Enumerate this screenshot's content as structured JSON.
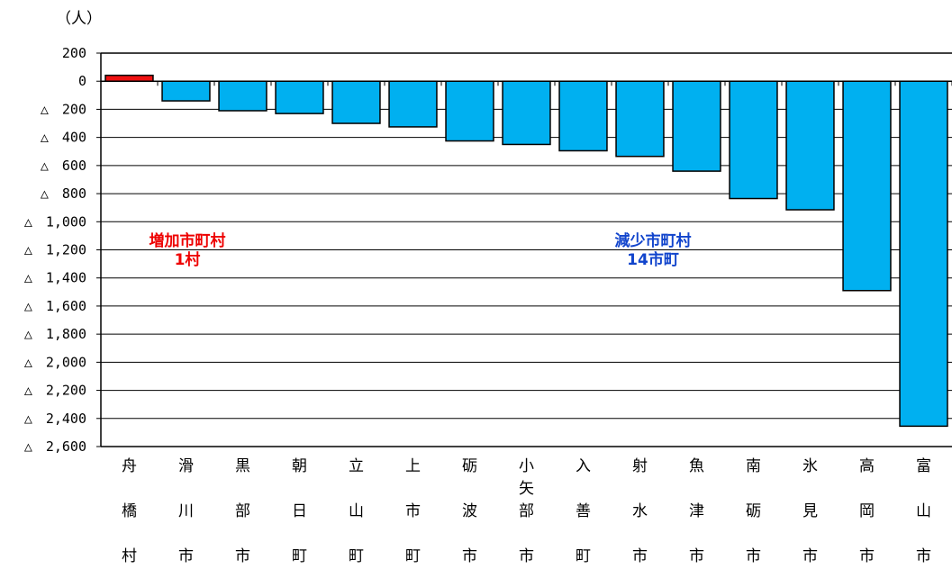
{
  "chart_data": {
    "type": "bar",
    "unit_label": "（人）",
    "categories": [
      "舟橋村",
      "滑川市",
      "黒部市",
      "朝日町",
      "立山町",
      "上市町",
      "砺波市",
      "小矢部市",
      "入善町",
      "射水市",
      "魚津市",
      "南砺市",
      "氷見市",
      "高岡市",
      "富山市"
    ],
    "values": [
      42,
      -140,
      -210,
      -230,
      -300,
      -325,
      -425,
      -450,
      -495,
      -535,
      -640,
      -835,
      -915,
      -1490,
      -2455
    ],
    "ylim": [
      -2600,
      200
    ],
    "yticks": [
      200,
      0,
      -200,
      -400,
      -600,
      -800,
      -1000,
      -1200,
      -1400,
      -1600,
      -1800,
      -2000,
      -2200,
      -2400,
      -2600
    ],
    "ytick_labels": [
      "200",
      "0",
      "△　200",
      "△　400",
      "△　600",
      "△　800",
      "△　1,000",
      "△　1,200",
      "△　1,400",
      "△　1,600",
      "△　1,800",
      "△　2,000",
      "△　2,200",
      "△　2,400",
      "△　2,600"
    ],
    "grid": true,
    "colors": {
      "increase": "#ee1111",
      "decrease": "#00b0f0",
      "increase_text": "#ee0000",
      "decrease_text": "#1144cc"
    },
    "annotations": [
      {
        "lines": [
          "増加市町村",
          "1村"
        ],
        "group": "increase"
      },
      {
        "lines": [
          "減少市町村",
          "14市町"
        ],
        "group": "decrease"
      }
    ]
  }
}
